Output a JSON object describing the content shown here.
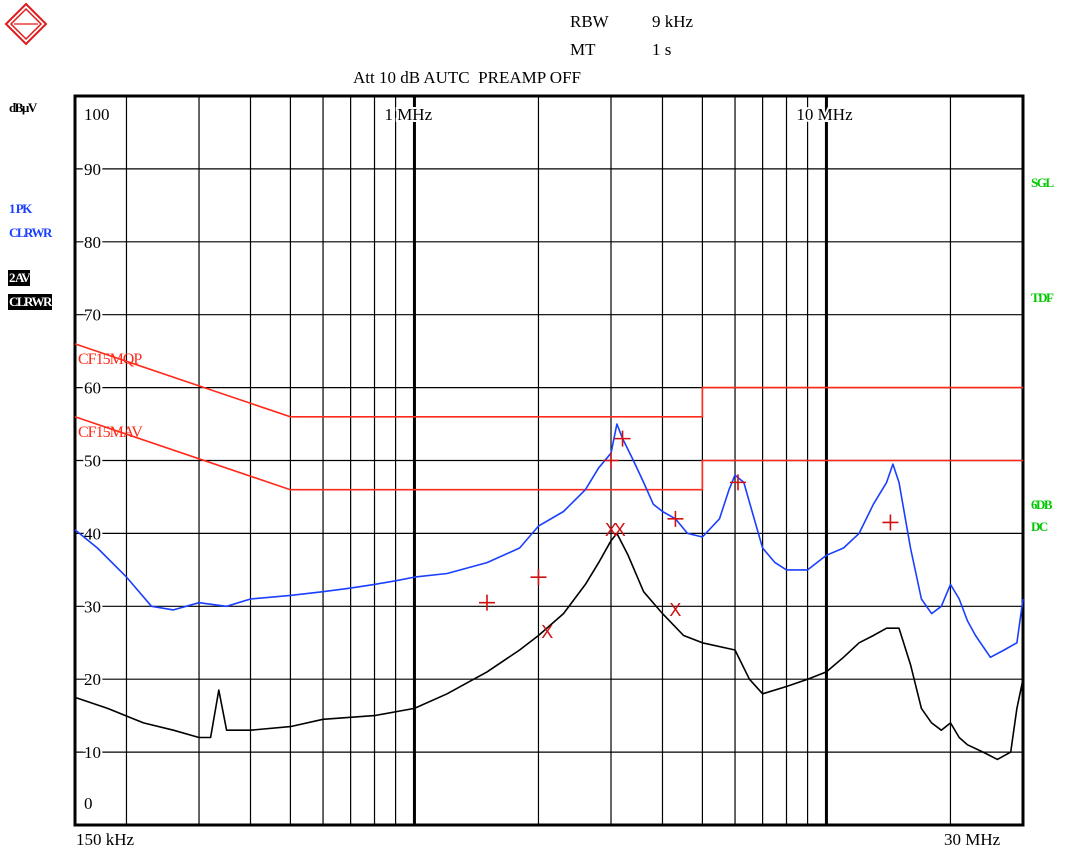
{
  "header": {
    "rbw_label": "RBW",
    "rbw_value": "9 kHz",
    "mt_label": "MT",
    "mt_value": "1 s",
    "att_line": "Att 10 dB AUTC  PREAMP OFF"
  },
  "left_panel": {
    "unit": "dBµV",
    "trace1_line1": "1 PK",
    "trace1_line2": "CLRWR",
    "trace2_line1": "2 AV",
    "trace2_line2": "CLRWR"
  },
  "right_panel": {
    "sgl": "SGL",
    "tdf": "TDF",
    "db_line1": "6DB",
    "db_line2": "DC"
  },
  "chart_data": {
    "type": "line",
    "x_scale": "log",
    "xlim_mhz": [
      0.15,
      30
    ],
    "ylim": [
      0,
      100
    ],
    "ylabel": "dBµV",
    "x_start_label": "150 kHz",
    "x_end_label": "30 MHz",
    "x_inner_labels": [
      {
        "mhz": 1,
        "text": "1 MHz"
      },
      {
        "mhz": 10,
        "text": "10 MHz"
      }
    ],
    "y_ticks": [
      0,
      10,
      20,
      30,
      40,
      50,
      60,
      70,
      80,
      90,
      100
    ],
    "limit_lines": [
      {
        "name": "CF15MQP",
        "color": "#ff2a1a",
        "points": [
          [
            0.15,
            66
          ],
          [
            0.5,
            56
          ],
          [
            5,
            56
          ],
          [
            5,
            60
          ],
          [
            30,
            60
          ]
        ]
      },
      {
        "name": "CF15MAV",
        "color": "#ff2a1a",
        "points": [
          [
            0.15,
            56
          ],
          [
            0.5,
            46
          ],
          [
            5,
            46
          ],
          [
            5,
            50
          ],
          [
            30,
            50
          ]
        ]
      }
    ],
    "series": [
      {
        "trace": "1 PK CLRWR",
        "color": "#1a3fff",
        "points": [
          [
            0.15,
            40.5
          ],
          [
            0.17,
            38
          ],
          [
            0.2,
            34
          ],
          [
            0.23,
            30
          ],
          [
            0.26,
            29.5
          ],
          [
            0.3,
            30.5
          ],
          [
            0.35,
            30
          ],
          [
            0.4,
            31
          ],
          [
            0.5,
            31.5
          ],
          [
            0.6,
            32
          ],
          [
            0.7,
            32.5
          ],
          [
            0.8,
            33
          ],
          [
            0.9,
            33.5
          ],
          [
            1.0,
            34
          ],
          [
            1.2,
            34.5
          ],
          [
            1.5,
            36
          ],
          [
            1.8,
            38
          ],
          [
            2.0,
            41
          ],
          [
            2.3,
            43
          ],
          [
            2.6,
            46
          ],
          [
            2.8,
            49
          ],
          [
            3.0,
            51
          ],
          [
            3.1,
            55
          ],
          [
            3.2,
            53
          ],
          [
            3.4,
            50
          ],
          [
            3.6,
            47
          ],
          [
            3.8,
            44
          ],
          [
            4.0,
            43
          ],
          [
            4.3,
            42
          ],
          [
            4.6,
            40
          ],
          [
            5.0,
            39.5
          ],
          [
            5.5,
            42
          ],
          [
            5.8,
            46
          ],
          [
            6.0,
            48
          ],
          [
            6.3,
            47
          ],
          [
            6.6,
            43
          ],
          [
            7.0,
            38
          ],
          [
            7.5,
            36
          ],
          [
            8,
            35
          ],
          [
            9,
            35
          ],
          [
            10,
            37
          ],
          [
            11,
            38
          ],
          [
            12,
            40
          ],
          [
            13,
            44
          ],
          [
            14,
            47
          ],
          [
            14.5,
            49.5
          ],
          [
            15,
            47
          ],
          [
            16,
            38
          ],
          [
            17,
            31
          ],
          [
            18,
            29
          ],
          [
            19,
            30
          ],
          [
            20,
            33
          ],
          [
            21,
            31
          ],
          [
            22,
            28
          ],
          [
            23,
            26
          ],
          [
            25,
            23
          ],
          [
            27,
            24
          ],
          [
            29,
            25
          ],
          [
            30,
            31
          ]
        ]
      },
      {
        "trace": "2 AV CLRWR",
        "color": "#000000",
        "points": [
          [
            0.15,
            17.5
          ],
          [
            0.18,
            16
          ],
          [
            0.22,
            14
          ],
          [
            0.26,
            13
          ],
          [
            0.3,
            12
          ],
          [
            0.32,
            12
          ],
          [
            0.335,
            18.5
          ],
          [
            0.35,
            13
          ],
          [
            0.4,
            13
          ],
          [
            0.5,
            13.5
          ],
          [
            0.6,
            14.5
          ],
          [
            0.8,
            15
          ],
          [
            1.0,
            16
          ],
          [
            1.2,
            18
          ],
          [
            1.5,
            21
          ],
          [
            1.8,
            24
          ],
          [
            2.0,
            26
          ],
          [
            2.3,
            29
          ],
          [
            2.6,
            33
          ],
          [
            2.8,
            36
          ],
          [
            3.0,
            39
          ],
          [
            3.1,
            40
          ],
          [
            3.3,
            37
          ],
          [
            3.6,
            32
          ],
          [
            4.0,
            29
          ],
          [
            4.5,
            26
          ],
          [
            5,
            25
          ],
          [
            6,
            24
          ],
          [
            6.5,
            20
          ],
          [
            7,
            18
          ],
          [
            8,
            19
          ],
          [
            9,
            20
          ],
          [
            10,
            21
          ],
          [
            11,
            23
          ],
          [
            12,
            25
          ],
          [
            13,
            26
          ],
          [
            14,
            27
          ],
          [
            15,
            27
          ],
          [
            16,
            22
          ],
          [
            17,
            16
          ],
          [
            18,
            14
          ],
          [
            19,
            13
          ],
          [
            20,
            14
          ],
          [
            21,
            12
          ],
          [
            22,
            11
          ],
          [
            24,
            10
          ],
          [
            26,
            9
          ],
          [
            28,
            10
          ],
          [
            29,
            16
          ],
          [
            30,
            20
          ]
        ]
      }
    ],
    "markers": [
      {
        "symbol": "+",
        "color": "#d01010",
        "x": 1.5,
        "y": 30.5
      },
      {
        "symbol": "+",
        "color": "#d01010",
        "x": 2.0,
        "y": 34
      },
      {
        "symbol": "+",
        "color": "#d01010",
        "x": 3.0,
        "y": 50
      },
      {
        "symbol": "+",
        "color": "#d01010",
        "x": 3.2,
        "y": 53
      },
      {
        "symbol": "+",
        "color": "#d01010",
        "x": 4.3,
        "y": 42
      },
      {
        "symbol": "+",
        "color": "#d01010",
        "x": 6.1,
        "y": 47
      },
      {
        "symbol": "+",
        "color": "#d01010",
        "x": 14.3,
        "y": 41.5
      },
      {
        "symbol": "X",
        "color": "#d01010",
        "x": 2.1,
        "y": 26.5
      },
      {
        "symbol": "X",
        "color": "#d01010",
        "x": 3.0,
        "y": 40.5
      },
      {
        "symbol": "X",
        "color": "#d01010",
        "x": 3.15,
        "y": 40.5
      },
      {
        "symbol": "X",
        "color": "#d01010",
        "x": 4.3,
        "y": 29.5
      }
    ],
    "grid": true
  }
}
